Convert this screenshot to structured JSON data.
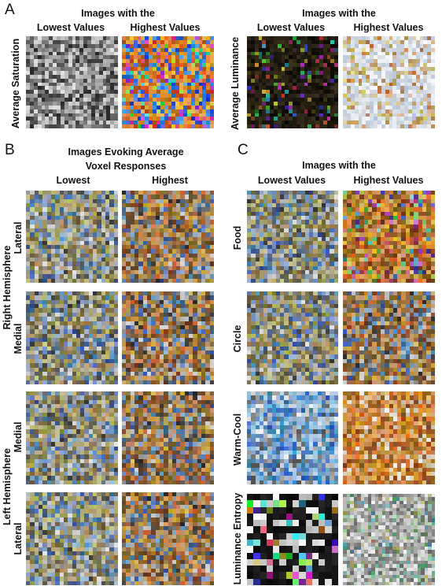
{
  "panel_a": {
    "letter": "A",
    "saturation": {
      "header": "Images with the",
      "col_lowest": "Lowest Values",
      "col_highest": "Highest Values",
      "row_label": "Average Saturation"
    },
    "luminance": {
      "header": "Images with the",
      "col_lowest": "Lowest Values",
      "col_highest": "Highest Values",
      "row_label": "Average Luminance"
    }
  },
  "panel_b": {
    "letter": "B",
    "header_line1": "Images Evoking Average",
    "header_line2": "Voxel Responses",
    "col_lowest": "Lowest",
    "col_highest": "Highest",
    "group_right": "Right Hemisphere",
    "group_left": "Left Hemisphere",
    "rows": [
      "Lateral",
      "Medial",
      "Medial",
      "Lateral"
    ]
  },
  "panel_c": {
    "letter": "C",
    "header": "Images with the",
    "col_lowest": "Lowest Values",
    "col_highest": "Highest Values",
    "rows": [
      "Food",
      "Circle",
      "Warm-Cool",
      "Luminance Entropy"
    ]
  },
  "colors": {
    "text": "#111111",
    "background": "#ffffff"
  }
}
